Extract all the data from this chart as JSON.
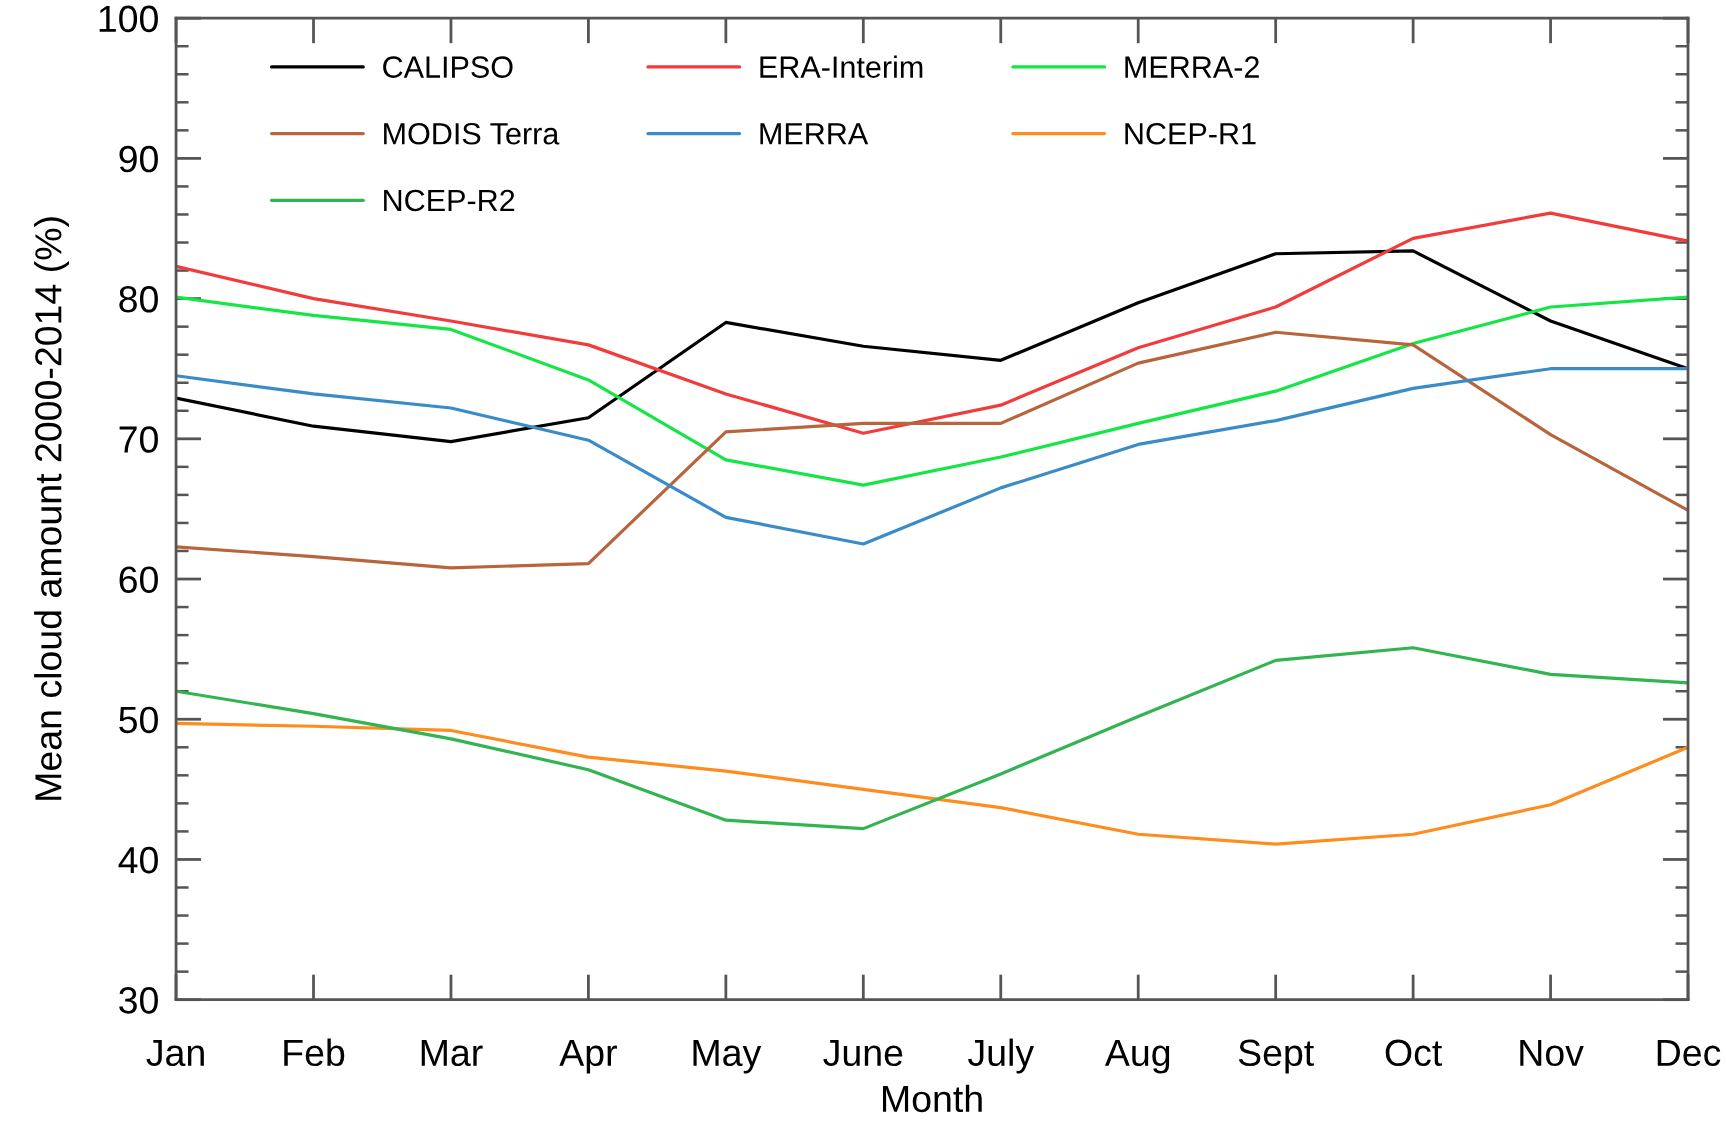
{
  "chart_data": {
    "type": "line",
    "xlabel": "Month",
    "ylabel": "Mean cloud amount 2000-2014 (%)",
    "categories": [
      "Jan",
      "Feb",
      "Mar",
      "Apr",
      "May",
      "June",
      "July",
      "Aug",
      "Sept",
      "Oct",
      "Nov",
      "Dec"
    ],
    "ylim": [
      30,
      100
    ],
    "yticks": [
      30,
      {
        "value": 32,
        "label": null
      },
      {
        "value": 34,
        "label": null
      },
      {
        "value": 36,
        "label": null
      },
      {
        "value": 38,
        "label": null
      },
      40,
      {
        "value": 42,
        "label": null
      },
      {
        "value": 44,
        "label": null
      },
      {
        "value": 46,
        "label": null
      },
      {
        "value": 48,
        "label": null
      },
      50,
      {
        "value": 52,
        "label": null
      },
      {
        "value": 54,
        "label": null
      },
      {
        "value": 56,
        "label": null
      },
      {
        "value": 58,
        "label": null
      },
      60,
      {
        "value": 62,
        "label": null
      },
      {
        "value": 64,
        "label": null
      },
      {
        "value": 66,
        "label": null
      },
      {
        "value": 68,
        "label": null
      },
      70,
      {
        "value": 72,
        "label": null
      },
      {
        "value": 74,
        "label": null
      },
      {
        "value": 76,
        "label": null
      },
      {
        "value": 78,
        "label": null
      },
      80,
      {
        "value": 82,
        "label": null
      },
      {
        "value": 84,
        "label": null
      },
      {
        "value": 86,
        "label": null
      },
      {
        "value": 88,
        "label": null
      },
      90,
      {
        "value": 92,
        "label": null
      },
      {
        "value": 94,
        "label": null
      },
      {
        "value": 96,
        "label": null
      },
      {
        "value": 98,
        "label": null
      },
      100
    ],
    "legend": "top left",
    "marker": "none",
    "line_style": "solid",
    "series": [
      {
        "name": "CALIPSO",
        "color": "#000000",
        "values": [
          72.9,
          70.9,
          69.8,
          71.5,
          78.3,
          76.6,
          75.6,
          79.7,
          83.2,
          83.4,
          78.4,
          75.0
        ]
      },
      {
        "name": "ERA-Interim",
        "color": "#f23b3b",
        "values": [
          82.3,
          80.0,
          78.4,
          76.7,
          73.2,
          70.4,
          72.4,
          76.5,
          79.4,
          84.3,
          86.1,
          84.1
        ]
      },
      {
        "name": "MERRA-2",
        "color": "#14e646",
        "values": [
          80.1,
          78.8,
          77.8,
          74.2,
          68.5,
          66.7,
          68.7,
          71.1,
          73.4,
          76.8,
          79.4,
          80.1
        ]
      },
      {
        "name": "MODIS Terra",
        "color": "#b8643c",
        "values": [
          62.3,
          61.6,
          60.8,
          61.1,
          70.5,
          71.1,
          71.1,
          75.4,
          77.6,
          76.7,
          70.3,
          64.9
        ]
      },
      {
        "name": "MERRA",
        "color": "#3a8cc8",
        "values": [
          74.5,
          73.2,
          72.2,
          69.9,
          64.4,
          62.5,
          66.5,
          69.6,
          71.3,
          73.6,
          75.0,
          75.0
        ]
      },
      {
        "name": "NCEP-R1",
        "color": "#ff8c1e",
        "values": [
          49.7,
          49.5,
          49.2,
          47.3,
          46.3,
          45.0,
          43.7,
          41.8,
          41.1,
          41.8,
          43.9,
          48.0
        ]
      },
      {
        "name": "NCEP-R2",
        "color": "#32b450",
        "values": [
          52.0,
          50.4,
          48.6,
          46.4,
          42.8,
          42.2,
          46.1,
          50.2,
          54.2,
          55.1,
          53.2,
          52.6
        ]
      }
    ]
  }
}
